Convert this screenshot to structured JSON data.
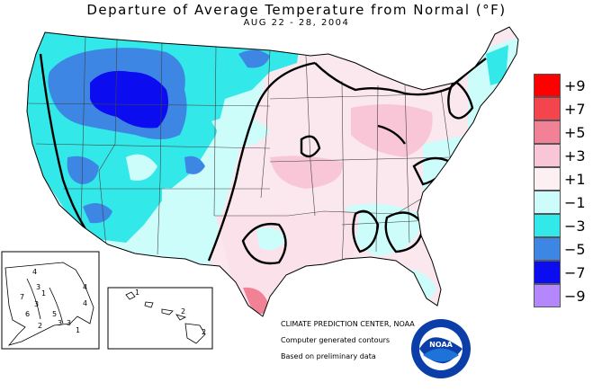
{
  "title": "Departure of Average Temperature from Normal (°F)",
  "subtitle": "AUG 22 - 28, 2004",
  "credits": {
    "center": "CLIMATE PREDICTION CENTER, NOAA",
    "line1": "Computer generated contours",
    "line2": "Based on preliminary data",
    "logo_text": "NOAA"
  },
  "legend": [
    {
      "label": "+9",
      "color": "#ff0000"
    },
    {
      "label": "+7",
      "color": "#f4444e"
    },
    {
      "label": "+5",
      "color": "#f18296"
    },
    {
      "label": "+3",
      "color": "#f8c6d6"
    },
    {
      "label": "+1",
      "color": "#fdf0f3"
    },
    {
      "label": "−1",
      "color": "#cdfdfb"
    },
    {
      "label": "−3",
      "color": "#33e8e8"
    },
    {
      "label": "−5",
      "color": "#3d86e4"
    },
    {
      "label": "−7",
      "color": "#0b0cf0"
    },
    {
      "label": "−9",
      "color": "#b487fc"
    }
  ],
  "alaska_labels": [
    "4",
    "4",
    "3",
    "1",
    "7",
    "3",
    "6",
    "5",
    "3",
    "2",
    "3",
    "1",
    "4"
  ],
  "hawaii_labels": [
    "1",
    "2",
    "2"
  ]
}
